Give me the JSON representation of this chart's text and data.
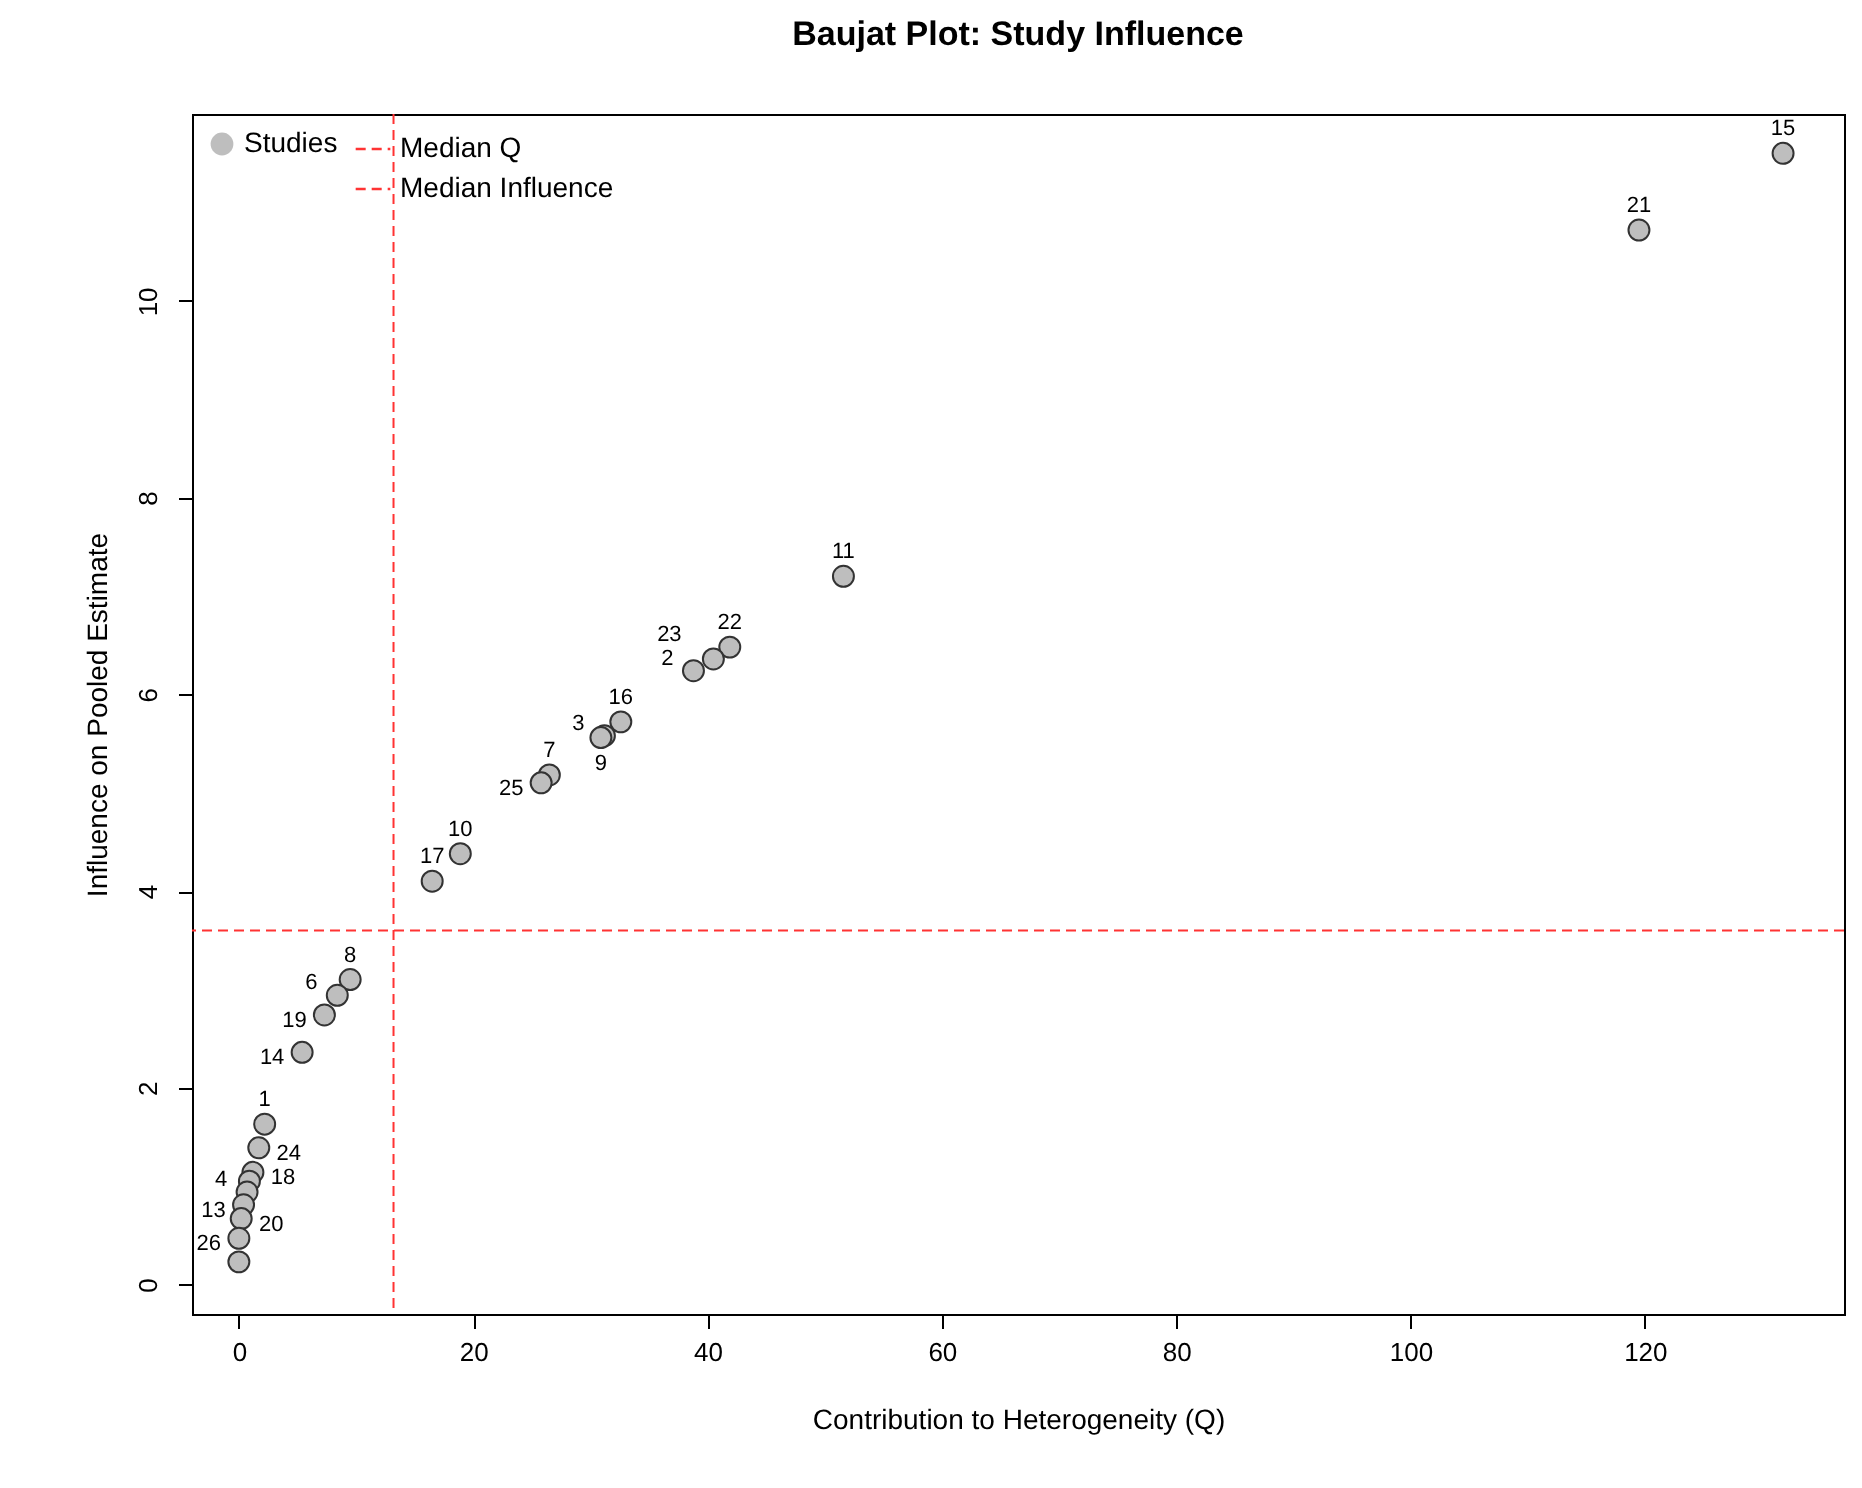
{
  "chart_data": {
    "type": "scatter",
    "title": "Baujat Plot: Study Influence",
    "xlabel": "Contribution to Heterogeneity (Q)",
    "ylabel": "Influence on Pooled Estimate",
    "x": [
      131.8,
      119.5,
      51.6,
      41.9,
      40.5,
      38.8,
      32.6,
      31.2,
      30.9,
      26.5,
      25.8,
      18.9,
      16.5,
      9.5,
      8.4,
      7.3,
      5.4,
      2.2,
      1.7,
      1.2,
      0.9,
      0.7,
      0.4,
      0.2,
      0.0,
      0.0
    ],
    "series": [
      {
        "name": "Studies",
        "color": "#bebebe",
        "values": [
          11.5,
          10.72,
          7.2,
          6.48,
          6.36,
          6.24,
          5.72,
          5.58,
          5.56,
          5.18,
          5.1,
          4.38,
          4.1,
          3.1,
          2.94,
          2.74,
          2.36,
          1.63,
          1.39,
          1.14,
          1.05,
          0.94,
          0.81,
          0.67,
          0.47,
          0.23
        ]
      }
    ],
    "annotations": [
      {
        "text": "15",
        "x": 131.8,
        "y": 11.5
      },
      {
        "text": "21",
        "x": 119.5,
        "y": 10.72
      },
      {
        "text": "11",
        "x": 51.6,
        "y": 7.2
      },
      {
        "text": "22",
        "x": 41.9,
        "y": 6.48
      },
      {
        "text": "23",
        "x": 40.5,
        "y": 6.36
      },
      {
        "text": "2",
        "x": 38.8,
        "y": 6.24
      },
      {
        "text": "16",
        "x": 32.6,
        "y": 5.72
      },
      {
        "text": "3",
        "x": 31.2,
        "y": 5.58
      },
      {
        "text": "9",
        "x": 30.9,
        "y": 5.56
      },
      {
        "text": "7",
        "x": 26.5,
        "y": 5.18
      },
      {
        "text": "25",
        "x": 25.8,
        "y": 5.1
      },
      {
        "text": "10",
        "x": 18.9,
        "y": 4.38
      },
      {
        "text": "17",
        "x": 16.5,
        "y": 4.1
      },
      {
        "text": "8",
        "x": 9.5,
        "y": 3.1
      },
      {
        "text": "6",
        "x": 8.4,
        "y": 2.94
      },
      {
        "text": "19",
        "x": 7.3,
        "y": 2.74
      },
      {
        "text": "14",
        "x": 5.4,
        "y": 2.36
      },
      {
        "text": "1",
        "x": 2.2,
        "y": 1.63
      },
      {
        "text": "24",
        "x": 1.7,
        "y": 1.39
      },
      {
        "text": "18",
        "x": 1.2,
        "y": 1.14
      },
      {
        "text": "4",
        "x": 0.7,
        "y": 0.94
      },
      {
        "text": "13",
        "x": 0.4,
        "y": 0.81
      },
      {
        "text": "20",
        "x": 0.2,
        "y": 0.67
      },
      {
        "text": "26",
        "x": 0.0,
        "y": 0.47
      }
    ],
    "xlim": [
      -4,
      137
    ],
    "xticks": [
      0,
      20,
      40,
      60,
      80,
      100,
      120
    ],
    "ylim": [
      -0.3,
      11.9
    ],
    "yticks": [
      0,
      2,
      4,
      6,
      8,
      10
    ],
    "ref_lines": [
      {
        "axis": "x",
        "value": 13.2,
        "label": "Median Q",
        "color": "#ff3333",
        "line_style": "dashed"
      },
      {
        "axis": "y",
        "value": 3.6,
        "label": "Median Influence",
        "color": "#ff3333",
        "line_style": "dashed"
      }
    ],
    "legend": "top left",
    "marker": "circle",
    "grid": false
  }
}
